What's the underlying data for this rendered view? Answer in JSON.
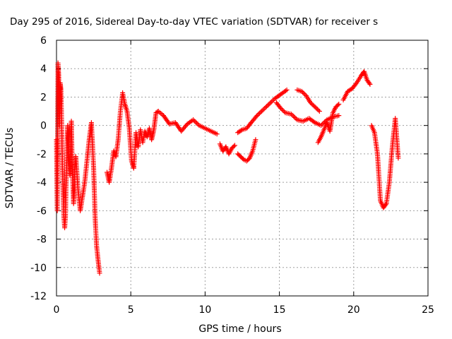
{
  "chart_data": {
    "type": "scatter",
    "title": "Day 295 of 2016, Sidereal Day-to-day VTEC variation (SDTVAR) for receiver s",
    "xlabel": "GPS time / hours",
    "ylabel": "SDTVAR / TECUs",
    "xlim": [
      0,
      25
    ],
    "ylim": [
      -12,
      6
    ],
    "xticks": [
      "0",
      "5",
      "10",
      "15",
      "20",
      "25"
    ],
    "yticks": [
      "6",
      "4",
      "2",
      "0",
      "-2",
      "-4",
      "-6",
      "-8",
      "-10",
      "-12"
    ],
    "grid": true,
    "marker": "plus",
    "color": "#ff0000",
    "series_segments": [
      {
        "x": [
          0.0,
          0.05,
          0.1,
          0.15,
          0.2,
          0.25,
          0.3,
          0.35,
          0.4,
          0.45,
          0.5,
          0.55,
          0.6,
          0.65,
          0.7,
          0.75,
          0.8,
          0.85,
          0.9,
          0.95,
          1.0,
          1.05,
          1.1,
          1.15,
          1.2,
          1.25,
          1.3
        ],
        "y": [
          -1.0,
          -6.0,
          4.4,
          3.5,
          0.0,
          3.0,
          2.5,
          0.0,
          -3.0,
          -5.0,
          -6.5,
          -7.2,
          -6.5,
          -4.0,
          -2.0,
          0.0,
          -1.0,
          -2.5,
          -3.5,
          -1.0,
          0.3,
          -2.5,
          -4.0,
          -5.5,
          -4.5,
          -3.0,
          -2.2
        ]
      },
      {
        "x": [
          1.3,
          1.45,
          1.6,
          1.75,
          1.9,
          2.05,
          2.2,
          2.35,
          2.5,
          2.6,
          2.7,
          2.8,
          2.9
        ],
        "y": [
          -2.2,
          -4.5,
          -6.0,
          -5.0,
          -4.0,
          -2.5,
          -1.0,
          0.2,
          -3.0,
          -6.5,
          -8.5,
          -9.5,
          -10.4
        ]
      },
      {
        "x": [
          3.4,
          3.55,
          3.7,
          3.85,
          4.0,
          4.15,
          4.3,
          4.45,
          4.6,
          4.75,
          4.9,
          5.05,
          5.2
        ],
        "y": [
          -3.3,
          -4.0,
          -3.0,
          -1.8,
          -2.2,
          -1.0,
          1.0,
          2.3,
          1.5,
          1.0,
          -0.2,
          -2.5,
          -3.0
        ]
      },
      {
        "x": [
          5.2,
          5.35,
          5.5,
          5.65,
          5.8,
          5.95,
          6.1,
          6.25,
          6.4,
          6.55,
          6.7,
          6.85
        ],
        "y": [
          -3.0,
          -0.5,
          -1.5,
          -0.3,
          -1.2,
          -0.4,
          -0.8,
          -0.2,
          -1.0,
          -0.3,
          0.9,
          1.0
        ]
      },
      {
        "x": [
          6.85,
          7.2,
          7.6,
          8.0,
          8.4,
          8.8,
          9.2,
          9.6,
          10.0,
          10.4,
          10.8
        ],
        "y": [
          1.0,
          0.7,
          0.1,
          0.2,
          -0.4,
          0.1,
          0.4,
          0.0,
          -0.2,
          -0.4,
          -0.6
        ]
      },
      {
        "x": [
          11.0,
          11.2,
          11.4,
          11.6,
          11.8,
          12.0
        ],
        "y": [
          -1.3,
          -1.8,
          -1.5,
          -2.0,
          -1.6,
          -1.4
        ]
      },
      {
        "x": [
          12.2,
          12.4,
          12.6,
          12.8,
          13.0,
          13.2,
          13.4
        ],
        "y": [
          -2.0,
          -2.2,
          -2.4,
          -2.5,
          -2.3,
          -1.8,
          -1.0
        ]
      },
      {
        "x": [
          12.2,
          12.5,
          12.8,
          13.1,
          13.5,
          13.9,
          14.3,
          14.7,
          15.1,
          15.5
        ],
        "y": [
          -0.5,
          -0.3,
          -0.2,
          0.2,
          0.7,
          1.1,
          1.5,
          1.9,
          2.2,
          2.5
        ]
      },
      {
        "x": [
          14.8,
          15.1,
          15.4,
          15.8,
          16.2,
          16.6,
          17.0,
          17.4,
          17.8,
          18.2,
          18.6,
          19.0
        ],
        "y": [
          1.6,
          1.2,
          0.9,
          0.8,
          0.4,
          0.3,
          0.5,
          0.2,
          0.0,
          0.4,
          0.6,
          0.7
        ]
      },
      {
        "x": [
          16.2,
          16.5,
          16.8,
          17.1,
          17.4,
          17.7
        ],
        "y": [
          2.5,
          2.4,
          2.1,
          1.6,
          1.3,
          1.0
        ]
      },
      {
        "x": [
          17.6,
          17.8,
          18.0,
          18.2,
          18.4,
          18.6,
          18.8,
          19.0
        ],
        "y": [
          -1.2,
          -0.8,
          -0.3,
          0.2,
          -0.4,
          0.9,
          1.3,
          1.5
        ]
      },
      {
        "x": [
          19.3,
          19.6,
          19.9,
          20.2,
          20.5,
          20.7,
          20.9,
          21.1
        ],
        "y": [
          1.8,
          2.4,
          2.6,
          3.0,
          3.5,
          3.8,
          3.2,
          2.9
        ]
      },
      {
        "x": [
          21.2,
          21.4,
          21.6,
          21.8,
          22.0,
          22.2,
          22.4,
          22.6,
          22.8,
          23.0
        ],
        "y": [
          0.0,
          -0.5,
          -2.0,
          -5.3,
          -5.8,
          -5.5,
          -4.0,
          -1.5,
          0.5,
          -2.3
        ]
      }
    ]
  }
}
